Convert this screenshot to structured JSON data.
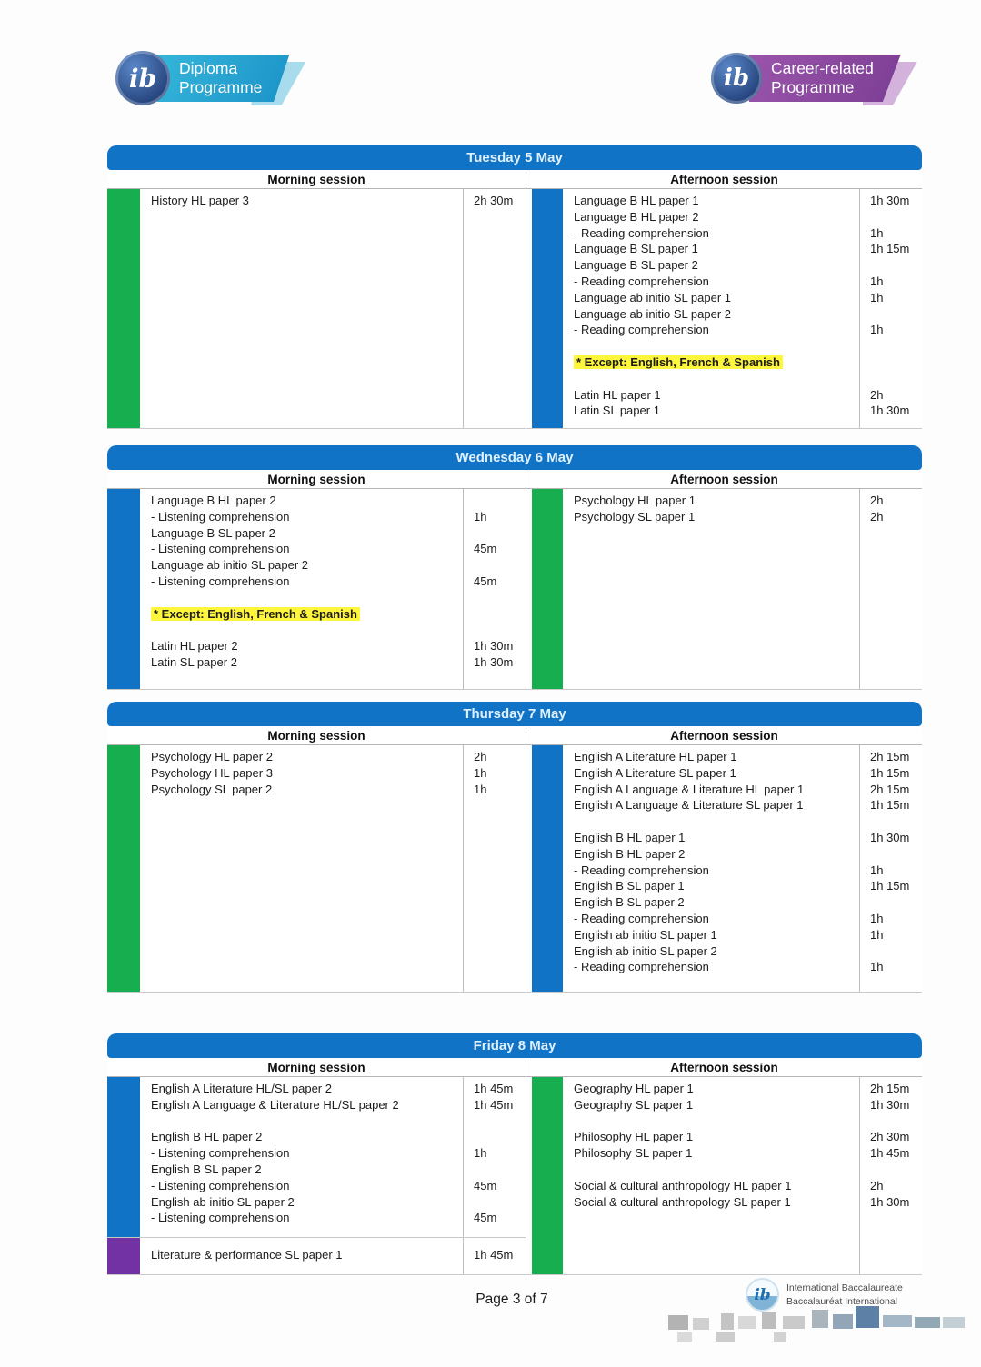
{
  "header": {
    "left_logo": {
      "circle_text": "ib",
      "line1": "Diploma",
      "line2": "Programme"
    },
    "right_logo": {
      "circle_text": "ib",
      "line1": "Career-related",
      "line2": "Programme"
    }
  },
  "colors": {
    "blue": "#1173c5",
    "green": "#17ae4f",
    "purple": "#7232a4",
    "highlight": "#fdf63c"
  },
  "session_labels": {
    "morning": "Morning session",
    "afternoon": "Afternoon session"
  },
  "tables": [
    {
      "day": "Tuesday 5 May",
      "morning": {
        "sections": [
          {
            "bar": "green",
            "rows": [
              {
                "t": "History HL paper 3",
                "d": "2h 30m"
              }
            ]
          }
        ]
      },
      "afternoon": {
        "sections": [
          {
            "bar": "blue",
            "rows": [
              {
                "t": "Language B HL paper 1",
                "d": "1h 30m"
              },
              {
                "t": "Language B HL paper 2",
                "d": ""
              },
              {
                "t": "- Reading comprehension",
                "d": "1h"
              },
              {
                "t": "Language B SL paper 1",
                "d": "1h 15m"
              },
              {
                "t": "Language B SL paper 2",
                "d": ""
              },
              {
                "t": "- Reading comprehension",
                "d": "1h"
              },
              {
                "t": "Language ab initio SL paper 1",
                "d": "1h"
              },
              {
                "t": "Language ab initio SL paper 2",
                "d": ""
              },
              {
                "t": "- Reading comprehension",
                "d": "1h"
              },
              {
                "t": "",
                "d": ""
              },
              {
                "t": "* Except: English, French & Spanish",
                "d": "",
                "hl": true
              },
              {
                "t": "",
                "d": ""
              },
              {
                "t": "Latin HL paper 1",
                "d": "2h"
              },
              {
                "t": "Latin SL paper 1",
                "d": "1h 30m"
              }
            ]
          }
        ]
      }
    },
    {
      "day": "Wednesday 6 May",
      "morning": {
        "sections": [
          {
            "bar": "blue",
            "rows": [
              {
                "t": "Language B HL paper 2",
                "d": ""
              },
              {
                "t": "- Listening comprehension",
                "d": "1h"
              },
              {
                "t": "Language B SL paper 2",
                "d": ""
              },
              {
                "t": "- Listening comprehension",
                "d": "45m"
              },
              {
                "t": "Language ab initio SL paper 2",
                "d": ""
              },
              {
                "t": "- Listening comprehension",
                "d": "45m"
              },
              {
                "t": "",
                "d": ""
              },
              {
                "t": "* Except: English, French & Spanish",
                "d": "",
                "hl": true
              },
              {
                "t": "",
                "d": ""
              },
              {
                "t": "Latin HL paper 2",
                "d": "1h 30m"
              },
              {
                "t": "Latin SL paper 2",
                "d": "1h 30m"
              }
            ]
          }
        ]
      },
      "afternoon": {
        "sections": [
          {
            "bar": "green",
            "rows": [
              {
                "t": "Psychology HL paper 1",
                "d": "2h"
              },
              {
                "t": "Psychology SL paper 1",
                "d": "2h"
              }
            ]
          }
        ]
      }
    },
    {
      "day": "Thursday 7 May",
      "morning": {
        "sections": [
          {
            "bar": "green",
            "rows": [
              {
                "t": "Psychology HL paper 2",
                "d": "2h"
              },
              {
                "t": "Psychology HL paper 3",
                "d": "1h"
              },
              {
                "t": "Psychology SL paper 2",
                "d": "1h"
              }
            ]
          }
        ]
      },
      "afternoon": {
        "sections": [
          {
            "bar": "blue",
            "rows": [
              {
                "t": "English A Literature HL paper 1",
                "d": "2h 15m"
              },
              {
                "t": "English A Literature SL paper 1",
                "d": "1h 15m"
              },
              {
                "t": "English A Language & Literature HL paper 1",
                "d": "2h 15m"
              },
              {
                "t": "English A Language & Literature SL paper 1",
                "d": "1h 15m"
              },
              {
                "t": "",
                "d": ""
              },
              {
                "t": "English B HL paper 1",
                "d": "1h 30m"
              },
              {
                "t": "English B HL paper 2",
                "d": ""
              },
              {
                "t": "- Reading comprehension",
                "d": "1h"
              },
              {
                "t": "English B SL paper 1",
                "d": "1h 15m"
              },
              {
                "t": "English B SL paper 2",
                "d": ""
              },
              {
                "t": "- Reading comprehension",
                "d": "1h"
              },
              {
                "t": "English ab initio SL paper 1",
                "d": "1h"
              },
              {
                "t": "English ab initio SL paper 2",
                "d": ""
              },
              {
                "t": "- Reading comprehension",
                "d": "1h"
              }
            ]
          }
        ]
      }
    },
    {
      "day": "Friday 8 May",
      "morning": {
        "sections": [
          {
            "bar": "blue",
            "rows": [
              {
                "t": "English A Literature HL/SL paper 2",
                "d": "1h 45m"
              },
              {
                "t": "English A Language & Literature HL/SL paper 2",
                "d": "1h 45m"
              },
              {
                "t": "",
                "d": ""
              },
              {
                "t": "English B HL paper 2",
                "d": ""
              },
              {
                "t": "- Listening comprehension",
                "d": "1h"
              },
              {
                "t": "English B SL paper 2",
                "d": ""
              },
              {
                "t": "- Listening comprehension",
                "d": "45m"
              },
              {
                "t": "English ab initio SL paper 2",
                "d": ""
              },
              {
                "t": "- Listening comprehension",
                "d": "45m"
              }
            ]
          },
          {
            "bar": "purple",
            "rows": [
              {
                "t": "Literature & performance SL paper 1",
                "d": "1h 45m"
              }
            ]
          }
        ]
      },
      "afternoon": {
        "sections": [
          {
            "bar": "green",
            "rows": [
              {
                "t": "Geography HL paper 1",
                "d": "2h 15m"
              },
              {
                "t": "Geography SL paper 1",
                "d": "1h 30m"
              },
              {
                "t": "",
                "d": ""
              },
              {
                "t": "Philosophy HL paper 1",
                "d": "2h 30m"
              },
              {
                "t": "Philosophy SL paper 1",
                "d": "1h 45m"
              },
              {
                "t": "",
                "d": ""
              },
              {
                "t": "Social & cultural anthropology HL paper 1",
                "d": "2h"
              },
              {
                "t": "Social & cultural anthropology SL paper 1",
                "d": "1h 30m"
              }
            ]
          }
        ]
      }
    }
  ],
  "footer": {
    "page": "Page 3 of 7",
    "ib_logo": {
      "circle_text": "ib",
      "line1": "International Baccalaureate",
      "line2": "Baccalauréat International"
    }
  }
}
